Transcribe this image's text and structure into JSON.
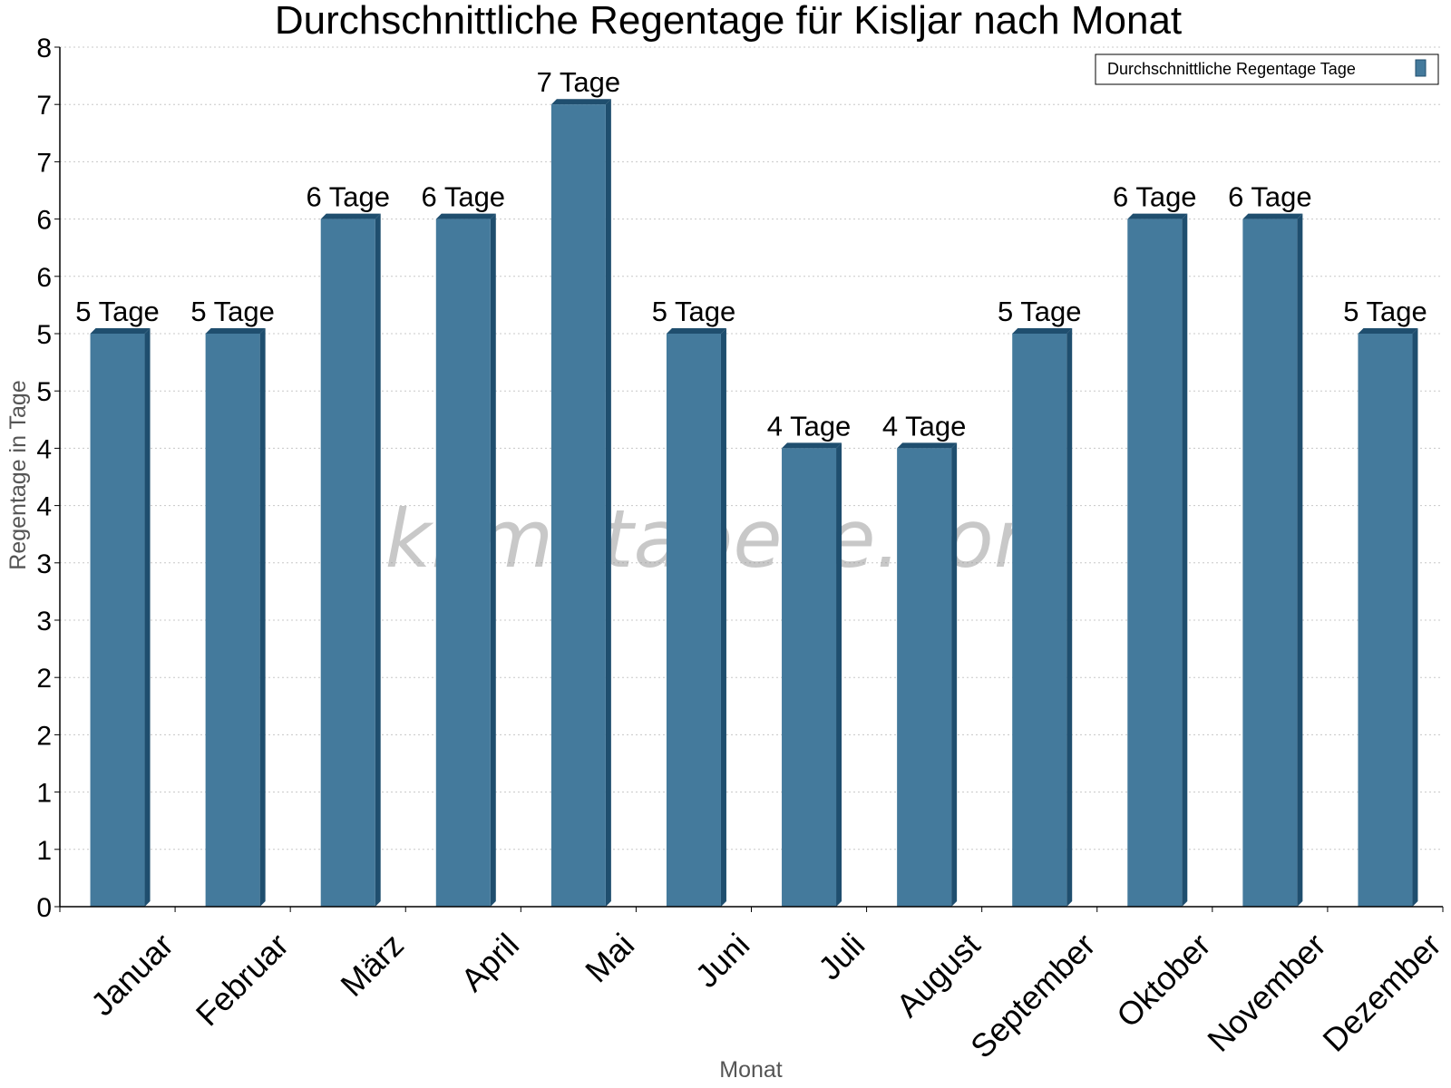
{
  "chart_data": {
    "type": "bar",
    "title": "Durchschnittliche Regentage für Kisljar nach Monat",
    "xlabel": "Monat",
    "ylabel": "Regentage in Tage",
    "categories": [
      "Januar",
      "Februar",
      "März",
      "April",
      "Mai",
      "Juni",
      "Juli",
      "August",
      "September",
      "Oktober",
      "November",
      "Dezember"
    ],
    "series": [
      {
        "name": "Durchschnittliche Regentage Tage",
        "values": [
          5,
          5,
          6,
          6,
          7,
          5,
          4,
          4,
          5,
          6,
          6,
          5
        ],
        "data_labels": [
          "5 Tage",
          "5 Tage",
          "6 Tage",
          "6 Tage",
          "7 Tage",
          "5 Tage",
          "4 Tage",
          "4 Tage",
          "5 Tage",
          "6 Tage",
          "6 Tage",
          "5 Tage"
        ],
        "color": "#447a9c"
      }
    ],
    "ylim": [
      0,
      7.5
    ],
    "yticks": [
      0,
      0.5,
      1,
      1.5,
      2,
      2.5,
      3,
      3.5,
      4,
      4.5,
      5,
      5.5,
      6,
      6.5,
      7,
      7.5
    ],
    "ytick_labels": [
      "0",
      "1",
      "1",
      "2",
      "2",
      "3",
      "3",
      "4",
      "4",
      "5",
      "5",
      "6",
      "6",
      "7",
      "7",
      "8"
    ],
    "grid": true,
    "legend_position": "top-right",
    "watermark": "klimatabelle.com",
    "colors": {
      "bar_face": "#447a9c",
      "bar_side": "#1f4e6e",
      "bar_top": "#1f4e6e",
      "grid": "#c8c8c8",
      "axis": "#000000"
    }
  }
}
